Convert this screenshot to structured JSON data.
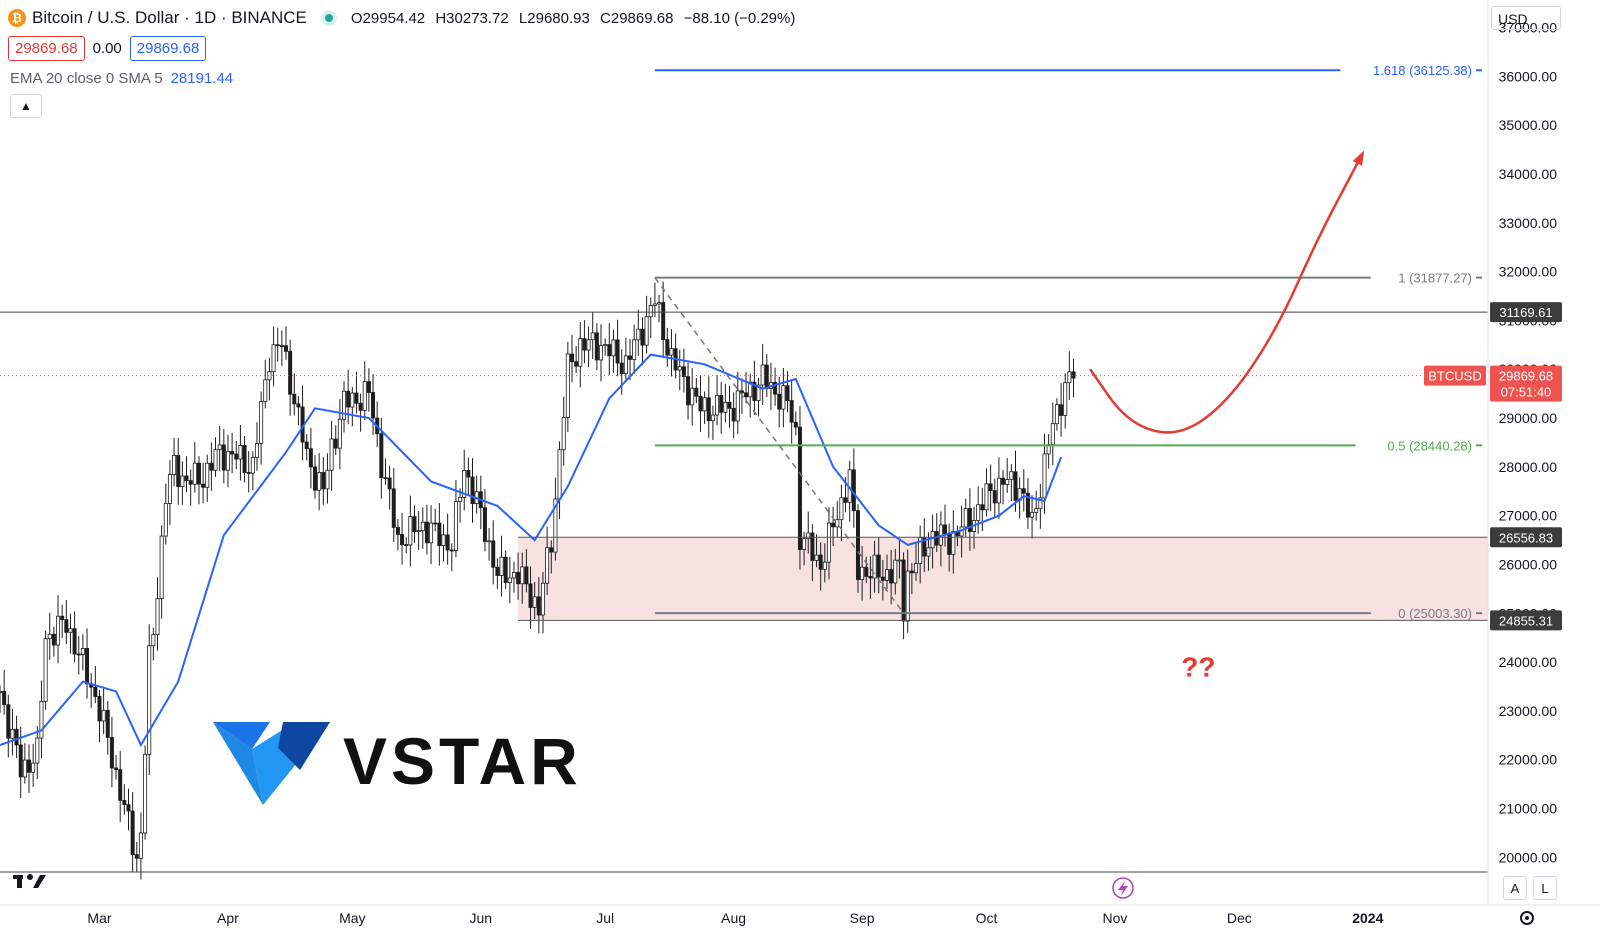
{
  "header": {
    "title": "Bitcoin / U.S. Dollar · 1D · BINANCE",
    "ohlc": {
      "o_label": "O",
      "o": "29954.42",
      "h_label": "H",
      "h": "30273.72",
      "l_label": "L",
      "l": "29680.93",
      "c_label": "C",
      "c": "29869.68",
      "change": "−88.10 (−0.29%)"
    },
    "bid": "29869.68",
    "spread": "0.00",
    "ask": "29869.68",
    "indicator_label": "EMA 20 close 0 SMA 5",
    "indicator_value": "28191.44",
    "collapse_icon": "chevron-up-icon"
  },
  "currency": "USD",
  "bottom_buttons": {
    "auto_label": "A",
    "log_label": "L"
  },
  "logo": {
    "text": "VSTAR",
    "icon": "vstar-v-logo"
  },
  "colors": {
    "up": "#26a69a",
    "down": "#ef5350",
    "candle": "#1e1e1e",
    "ema": "#2962ff",
    "fib_top": "#2962ff",
    "fib_mid": "#4caf50",
    "arrow": "#e53935",
    "zone": "#f8e1e1",
    "line_gray": "#787b86"
  },
  "chart_data": {
    "type": "candlestick",
    "title": "Bitcoin / U.S. Dollar · 1D · BINANCE",
    "ylim": [
      19700,
      37400
    ],
    "yticks": [
      20000,
      21000,
      22000,
      23000,
      24000,
      25000,
      26000,
      27000,
      28000,
      29000,
      30000,
      31000,
      32000,
      33000,
      34000,
      35000,
      36000,
      37000
    ],
    "ytick_labels": [
      "20000.00",
      "21000.00",
      "22000.00",
      "23000.00",
      "24000.00",
      "25000.00",
      "26000.00",
      "27000.00",
      "28000.00",
      "29000.00",
      "30000.00",
      "31000.00",
      "32000.00",
      "33000.00",
      "34000.00",
      "35000.00",
      "36000.00",
      "37000.00"
    ],
    "xlim": [
      "2023-02-05",
      "2024-01-30"
    ],
    "xticks": [
      {
        "date": "2023-03-01",
        "label": "Mar"
      },
      {
        "date": "2023-04-01",
        "label": "Apr"
      },
      {
        "date": "2023-05-01",
        "label": "May"
      },
      {
        "date": "2023-06-01",
        "label": "Jun"
      },
      {
        "date": "2023-07-01",
        "label": "Jul"
      },
      {
        "date": "2023-08-01",
        "label": "Aug"
      },
      {
        "date": "2023-09-01",
        "label": "Sep"
      },
      {
        "date": "2023-10-01",
        "label": "Oct"
      },
      {
        "date": "2023-11-01",
        "label": "Nov"
      },
      {
        "date": "2023-12-01",
        "label": "Dec"
      },
      {
        "date": "2024-01-01",
        "label": "2024"
      }
    ],
    "close_path": [
      [
        "2023-02-05",
        23400
      ],
      [
        "2023-02-10",
        21800
      ],
      [
        "2023-02-14",
        22100
      ],
      [
        "2023-02-16",
        24500
      ],
      [
        "2023-02-21",
        24800
      ],
      [
        "2023-02-28",
        23300
      ],
      [
        "2023-03-03",
        22400
      ],
      [
        "2023-03-09",
        20300
      ],
      [
        "2023-03-10",
        20000
      ],
      [
        "2023-03-11",
        20500
      ],
      [
        "2023-03-13",
        24000
      ],
      [
        "2023-03-14",
        24600
      ],
      [
        "2023-03-17",
        27400
      ],
      [
        "2023-03-19",
        28000
      ],
      [
        "2023-03-22",
        27700
      ],
      [
        "2023-03-26",
        27800
      ],
      [
        "2023-03-30",
        28300
      ],
      [
        "2023-04-03",
        28200
      ],
      [
        "2023-04-07",
        28000
      ],
      [
        "2023-04-11",
        30300
      ],
      [
        "2023-04-14",
        30500
      ],
      [
        "2023-04-17",
        29400
      ],
      [
        "2023-04-20",
        28200
      ],
      [
        "2023-04-24",
        27500
      ],
      [
        "2023-04-26",
        28400
      ],
      [
        "2023-04-29",
        29300
      ],
      [
        "2023-05-05",
        29500
      ],
      [
        "2023-05-08",
        28100
      ],
      [
        "2023-05-12",
        26500
      ],
      [
        "2023-05-18",
        26800
      ],
      [
        "2023-05-25",
        26400
      ],
      [
        "2023-05-28",
        28000
      ],
      [
        "2023-06-01",
        27000
      ],
      [
        "2023-06-05",
        25800
      ],
      [
        "2023-06-10",
        25800
      ],
      [
        "2023-06-15",
        25100
      ],
      [
        "2023-06-18",
        26500
      ],
      [
        "2023-06-20",
        28300
      ],
      [
        "2023-06-22",
        30000
      ],
      [
        "2023-06-25",
        30500
      ],
      [
        "2023-06-30",
        30500
      ],
      [
        "2023-07-06",
        30100
      ],
      [
        "2023-07-13",
        31400
      ],
      [
        "2023-07-17",
        30200
      ],
      [
        "2023-07-24",
        29200
      ],
      [
        "2023-07-31",
        29200
      ],
      [
        "2023-08-08",
        29800
      ],
      [
        "2023-08-14",
        29300
      ],
      [
        "2023-08-16",
        28700
      ],
      [
        "2023-08-17",
        26600
      ],
      [
        "2023-08-22",
        26000
      ],
      [
        "2023-08-29",
        27800
      ],
      [
        "2023-08-31",
        25900
      ],
      [
        "2023-09-06",
        25800
      ],
      [
        "2023-09-10",
        25900
      ],
      [
        "2023-09-11",
        25100
      ],
      [
        "2023-09-12",
        25800
      ],
      [
        "2023-09-18",
        26600
      ],
      [
        "2023-09-22",
        26500
      ],
      [
        "2023-09-28",
        27000
      ],
      [
        "2023-10-02",
        27500
      ],
      [
        "2023-10-05",
        27700
      ],
      [
        "2023-10-09",
        27600
      ],
      [
        "2023-10-12",
        26800
      ],
      [
        "2023-10-16",
        28500
      ],
      [
        "2023-10-20",
        29700
      ],
      [
        "2023-10-22",
        29900
      ]
    ],
    "ema_path": [
      [
        "2023-02-05",
        22300
      ],
      [
        "2023-02-15",
        22600
      ],
      [
        "2023-02-25",
        23600
      ],
      [
        "2023-03-05",
        23400
      ],
      [
        "2023-03-11",
        22300
      ],
      [
        "2023-03-20",
        23600
      ],
      [
        "2023-03-31",
        26600
      ],
      [
        "2023-04-15",
        28300
      ],
      [
        "2023-04-22",
        29200
      ],
      [
        "2023-05-05",
        29000
      ],
      [
        "2023-05-20",
        27700
      ],
      [
        "2023-06-05",
        27200
      ],
      [
        "2023-06-14",
        26500
      ],
      [
        "2023-06-22",
        27600
      ],
      [
        "2023-07-02",
        29400
      ],
      [
        "2023-07-12",
        30300
      ],
      [
        "2023-07-25",
        30100
      ],
      [
        "2023-08-08",
        29600
      ],
      [
        "2023-08-16",
        29800
      ],
      [
        "2023-08-25",
        28000
      ],
      [
        "2023-09-05",
        26800
      ],
      [
        "2023-09-12",
        26400
      ],
      [
        "2023-09-25",
        26700
      ],
      [
        "2023-10-04",
        27000
      ],
      [
        "2023-10-10",
        27400
      ],
      [
        "2023-10-15",
        27300
      ],
      [
        "2023-10-19",
        28200
      ]
    ],
    "series": [
      {
        "name": "EMA 20 close 0 SMA 5",
        "last_value": 28191.44
      }
    ],
    "fibonacci": {
      "from_date": "2023-07-13",
      "to_date": "2023-09-11",
      "levels": [
        {
          "ratio": "1.618",
          "price": 36125.38,
          "label": "1.618 (36125.38)"
        },
        {
          "ratio": "1",
          "price": 31877.27,
          "label": "1 (31877.27)"
        },
        {
          "ratio": "0.5",
          "price": 28440.28,
          "label": "0.5 (28440.28)"
        },
        {
          "ratio": "0",
          "price": 25003.3,
          "label": "0 (25003.30)"
        }
      ]
    },
    "horizontal_lines": [
      {
        "price": 31169.61,
        "label": "31169.61"
      },
      {
        "price": 19700,
        "label": ""
      }
    ],
    "zone": {
      "from_date": "2023-06-10",
      "top": 26556.83,
      "bottom": 24855.31,
      "top_label": "26556.83",
      "bottom_label": "24855.31"
    },
    "last_price": {
      "symbol": "BTCUSD",
      "price": 29869.68,
      "price_label": "29869.68",
      "countdown": "07:51:40"
    },
    "projection_path": [
      [
        "2023-10-26",
        30000
      ],
      [
        "2023-11-04",
        28900
      ],
      [
        "2023-11-16",
        28600
      ],
      [
        "2023-11-28",
        29300
      ],
      [
        "2023-12-10",
        30800
      ],
      [
        "2023-12-20",
        32700
      ],
      [
        "2023-12-30",
        34300
      ]
    ],
    "annotations": [
      {
        "text": "??",
        "date": "2023-11-17",
        "price": 23700
      }
    ],
    "legend": "top-left",
    "grid": false
  }
}
